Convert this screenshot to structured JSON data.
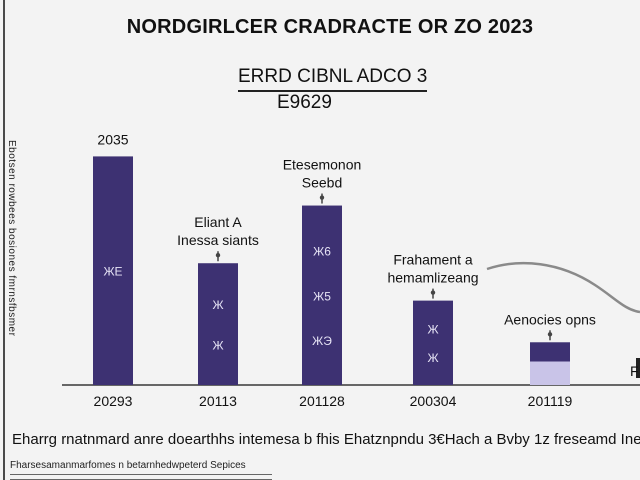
{
  "chart_data": {
    "type": "bar",
    "title": "NORDGIRLCER CRADRACTE OR ZO 2023",
    "subtitle": "ERRD CIBNL ADCO 3",
    "subtitle2": "E9629",
    "ylabel": "Ebotsen rowbees bosiones fmrnsfbsmer",
    "ylim": [
      0,
      220
    ],
    "categories": [
      "20293",
      "20113",
      "201128",
      "200304",
      "201119"
    ],
    "values": [
      214,
      114,
      168,
      79,
      40
    ],
    "colors": {
      "bar": "#3d3172",
      "accent": "#c9c4e8",
      "axis": "#666666",
      "trend": "#8a8a8a"
    },
    "annotations": [
      {
        "lines": [
          "2035"
        ]
      },
      {
        "lines": [
          "Eliant A",
          "Inessa siants"
        ]
      },
      {
        "lines": [
          "Etesemonon",
          "Seebd"
        ]
      },
      {
        "lines": [
          "Frahament a",
          "hemamlizeang"
        ]
      },
      {
        "lines": [
          "Aenocies opns"
        ]
      }
    ],
    "bar_labels": [
      [
        "ЖЕ"
      ],
      [
        "Ж",
        "Ж"
      ],
      [
        "Ж6",
        "Ж5",
        "ЖЭ"
      ],
      [
        "Ж",
        "Ж"
      ],
      []
    ],
    "right_partial_label": "F"
  },
  "caption": "Eharrg rnatnmard anre doearthhs intemesa b fhis Ehatznpndu 3€Hach a Bvby 1z freseamd Inef areernae oone",
  "footnote": "Fharsesamanmarfomes n betarnhedwpeterd Sepices"
}
